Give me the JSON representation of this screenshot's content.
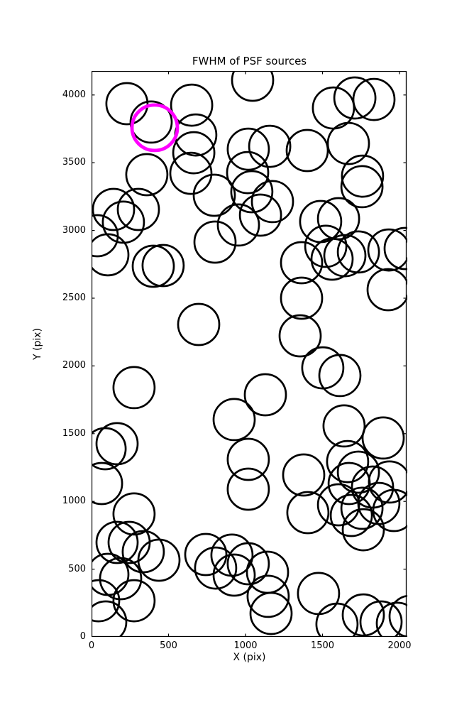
{
  "figure": {
    "title": "FWHM of PSF sources",
    "xlabel": "X (pix)",
    "ylabel": "Y (pix)"
  },
  "colors": {
    "background": "#ffffff",
    "axes": "#000000",
    "marker_edge": "#000000",
    "highlight_edge": "#ff00ff"
  },
  "chart_data": {
    "type": "scatter",
    "title": "FWHM of PSF sources",
    "xlabel": "X (pix)",
    "ylabel": "Y (pix)",
    "xlim": [
      0,
      2046
    ],
    "ylim": [
      0,
      4177
    ],
    "xticks": [
      0,
      500,
      1000,
      1500,
      2000
    ],
    "yticks": [
      0,
      500,
      1000,
      1500,
      2000,
      2500,
      3000,
      3500,
      4000
    ],
    "grid": false,
    "legend": null,
    "marker_style": {
      "shape": "circle",
      "fill": "none",
      "edge_color": "#000000",
      "edge_width": 2.7,
      "radius_px": 29
    },
    "highlight_style": {
      "shape": "circle",
      "fill": "none",
      "edge_color": "#ff00ff",
      "edge_width": 4.8,
      "radius_px": 32
    },
    "series": [
      {
        "name": "psf_sources",
        "points": [
          [
            230,
            3936
          ],
          [
            387,
            3800
          ],
          [
            650,
            3925
          ],
          [
            1046,
            4109
          ],
          [
            1571,
            3904
          ],
          [
            1710,
            3978
          ],
          [
            1834,
            3967
          ],
          [
            677,
            3705
          ],
          [
            664,
            3574
          ],
          [
            1018,
            3600
          ],
          [
            1157,
            3621
          ],
          [
            1401,
            3590
          ],
          [
            1668,
            3642
          ],
          [
            1760,
            3401
          ],
          [
            1756,
            3323
          ],
          [
            359,
            3412
          ],
          [
            645,
            3422
          ],
          [
            1014,
            3427
          ],
          [
            797,
            3260
          ],
          [
            1041,
            3286
          ],
          [
            1097,
            3113
          ],
          [
            954,
            3040
          ],
          [
            802,
            2914
          ],
          [
            1175,
            3213
          ],
          [
            1488,
            3066
          ],
          [
            1604,
            3087
          ],
          [
            1521,
            2883
          ],
          [
            1645,
            2814
          ],
          [
            1733,
            2841
          ],
          [
            1931,
            2856
          ],
          [
            2037,
            2867
          ],
          [
            1926,
            2563
          ],
          [
            143,
            3155
          ],
          [
            304,
            3155
          ],
          [
            207,
            3061
          ],
          [
            37,
            2961
          ],
          [
            106,
            2820
          ],
          [
            401,
            2736
          ],
          [
            465,
            2741
          ],
          [
            696,
            2306
          ],
          [
            1364,
            2762
          ],
          [
            1364,
            2500
          ],
          [
            1562,
            2788
          ],
          [
            1355,
            2222
          ],
          [
            276,
            1840
          ],
          [
            166,
            1426
          ],
          [
            88,
            1389
          ],
          [
            65,
            1132
          ],
          [
            926,
            1604
          ],
          [
            1129,
            1787
          ],
          [
            1018,
            1310
          ],
          [
            1018,
            1090
          ],
          [
            1502,
            1986
          ],
          [
            1613,
            1929
          ],
          [
            1640,
            1557
          ],
          [
            1894,
            1468
          ],
          [
            1663,
            1294
          ],
          [
            1733,
            1216
          ],
          [
            1673,
            1132
          ],
          [
            1825,
            1106
          ],
          [
            1935,
            1143
          ],
          [
            1405,
            917
          ],
          [
            1604,
            975
          ],
          [
            1687,
            896
          ],
          [
            1756,
            949
          ],
          [
            1866,
            985
          ],
          [
            1765,
            791
          ],
          [
            1963,
            933
          ],
          [
            1378,
            1195
          ],
          [
            1018,
            540
          ],
          [
            1143,
            477
          ],
          [
            1147,
            299
          ],
          [
            1166,
            173
          ],
          [
            1474,
            320
          ],
          [
            1594,
            94
          ],
          [
            1765,
            162
          ],
          [
            1880,
            110
          ],
          [
            1986,
            100
          ],
          [
            2069,
            152
          ],
          [
            276,
            907
          ],
          [
            166,
            697
          ],
          [
            244,
            697
          ],
          [
            336,
            629
          ],
          [
            438,
            566
          ],
          [
            106,
            461
          ],
          [
            189,
            430
          ],
          [
            46,
            267
          ],
          [
            276,
            267
          ],
          [
            92,
            110
          ],
          [
            742,
            608
          ],
          [
            806,
            508
          ],
          [
            912,
            603
          ],
          [
            926,
            456
          ]
        ]
      },
      {
        "name": "highlighted_source",
        "points": [
          [
            410,
            3758
          ]
        ]
      }
    ]
  }
}
